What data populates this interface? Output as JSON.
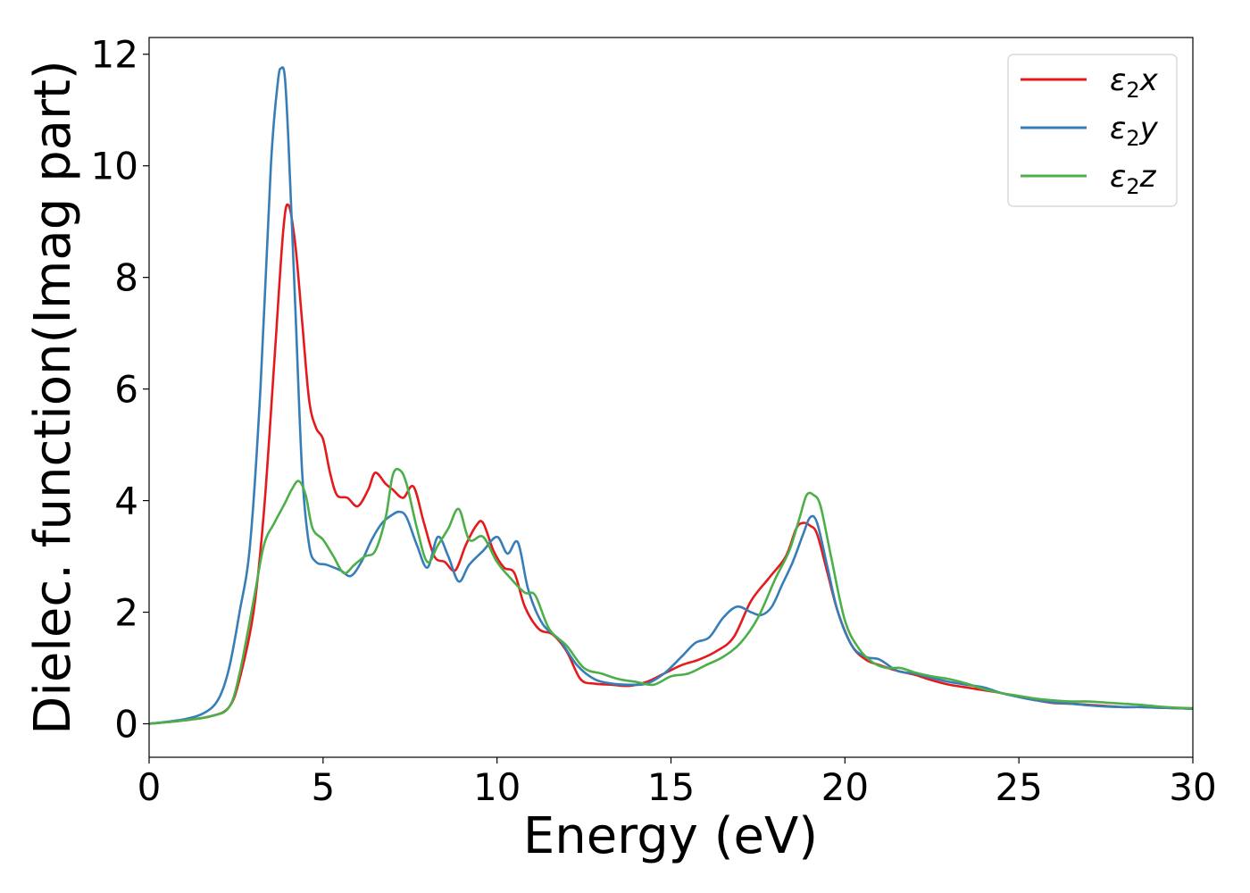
{
  "chart_data": {
    "type": "line",
    "xlabel": "Energy (eV)",
    "ylabel": "Dielec. function(Imag part)",
    "xlim": [
      0,
      30
    ],
    "ylim": [
      -0.6,
      12.3
    ],
    "xticks": [
      "0",
      "5",
      "10",
      "15",
      "20",
      "25",
      "30"
    ],
    "yticks": [
      "0",
      "2",
      "4",
      "6",
      "8",
      "10",
      "12"
    ],
    "grid": false,
    "legend_position": "top-right",
    "series": [
      {
        "name": "ε₂x",
        "legend_base": "ε",
        "legend_sub": "2",
        "legend_suffix": "x",
        "color": "#e41a1c",
        "x": [
          0,
          1,
          1.8,
          2.3,
          2.6,
          3.0,
          3.3,
          3.6,
          3.85,
          4.0,
          4.2,
          4.4,
          4.6,
          4.8,
          5.0,
          5.2,
          5.4,
          5.7,
          6.0,
          6.3,
          6.5,
          6.8,
          7.0,
          7.3,
          7.6,
          7.9,
          8.2,
          8.5,
          8.8,
          9.1,
          9.4,
          9.6,
          9.9,
          10.2,
          10.5,
          10.8,
          11.2,
          11.6,
          12.0,
          12.4,
          12.8,
          13.3,
          13.8,
          14.3,
          14.8,
          15.3,
          15.8,
          16.3,
          16.8,
          17.3,
          17.8,
          18.3,
          18.6,
          18.8,
          19.0,
          19.2,
          19.5,
          19.8,
          20.2,
          20.6,
          21.0,
          21.5,
          22.0,
          22.5,
          23.0,
          23.5,
          24.0,
          24.5,
          25.0,
          25.5,
          26.0,
          26.5,
          27.0,
          27.5,
          28.0,
          28.5,
          29.0,
          29.5,
          30.0
        ],
        "values": [
          0.0,
          0.06,
          0.14,
          0.3,
          0.8,
          2.0,
          3.8,
          6.5,
          8.8,
          9.3,
          8.6,
          7.2,
          5.8,
          5.3,
          5.1,
          4.5,
          4.1,
          4.05,
          3.9,
          4.2,
          4.5,
          4.3,
          4.2,
          4.05,
          4.25,
          3.6,
          3.0,
          2.9,
          2.75,
          3.2,
          3.55,
          3.6,
          3.1,
          2.8,
          2.7,
          2.1,
          1.7,
          1.6,
          1.3,
          0.8,
          0.72,
          0.7,
          0.68,
          0.75,
          0.9,
          1.05,
          1.15,
          1.3,
          1.55,
          2.2,
          2.6,
          3.0,
          3.5,
          3.6,
          3.55,
          3.4,
          2.7,
          2.0,
          1.4,
          1.15,
          1.05,
          0.95,
          0.88,
          0.78,
          0.7,
          0.65,
          0.6,
          0.55,
          0.48,
          0.42,
          0.37,
          0.36,
          0.34,
          0.32,
          0.3,
          0.3,
          0.29,
          0.28,
          0.27
        ]
      },
      {
        "name": "ε₂y",
        "legend_base": "ε",
        "legend_sub": "2",
        "legend_suffix": "y",
        "color": "#377eb8",
        "x": [
          0,
          1,
          1.6,
          2.0,
          2.3,
          2.6,
          2.9,
          3.2,
          3.5,
          3.7,
          3.8,
          3.9,
          4.0,
          4.2,
          4.4,
          4.6,
          4.8,
          5.1,
          5.5,
          5.8,
          6.1,
          6.4,
          6.7,
          7.0,
          7.2,
          7.4,
          7.7,
          8.0,
          8.3,
          8.6,
          8.9,
          9.2,
          9.6,
          10.0,
          10.3,
          10.6,
          10.9,
          11.3,
          11.8,
          12.3,
          12.8,
          13.3,
          13.8,
          14.3,
          14.8,
          15.3,
          15.7,
          16.1,
          16.5,
          16.9,
          17.3,
          17.6,
          17.9,
          18.2,
          18.5,
          18.8,
          19.0,
          19.2,
          19.5,
          19.8,
          20.2,
          20.6,
          21.0,
          21.5,
          22.0,
          22.5,
          23.0,
          23.5,
          24.0,
          24.5,
          25.0,
          25.5,
          26.0,
          26.5,
          27.0,
          27.5,
          28.0,
          28.5,
          29.0,
          29.5,
          30.0
        ],
        "values": [
          0.0,
          0.08,
          0.2,
          0.45,
          1.0,
          2.0,
          3.2,
          6.0,
          10.0,
          11.5,
          11.75,
          11.6,
          10.5,
          7.5,
          4.5,
          3.2,
          2.9,
          2.85,
          2.75,
          2.65,
          2.9,
          3.3,
          3.6,
          3.75,
          3.8,
          3.7,
          3.2,
          2.8,
          3.35,
          3.0,
          2.55,
          2.85,
          3.1,
          3.35,
          3.05,
          3.25,
          2.4,
          1.8,
          1.5,
          1.05,
          0.8,
          0.72,
          0.7,
          0.72,
          0.9,
          1.2,
          1.45,
          1.55,
          1.9,
          2.1,
          2.0,
          1.95,
          2.1,
          2.5,
          2.9,
          3.4,
          3.7,
          3.6,
          2.8,
          2.0,
          1.4,
          1.2,
          1.15,
          0.95,
          0.9,
          0.82,
          0.75,
          0.7,
          0.65,
          0.55,
          0.48,
          0.42,
          0.38,
          0.36,
          0.33,
          0.31,
          0.3,
          0.3,
          0.29,
          0.28,
          0.27
        ]
      },
      {
        "name": "ε₂z",
        "legend_base": "ε",
        "legend_sub": "2",
        "legend_suffix": "z",
        "color": "#4daf4a",
        "x": [
          0,
          1,
          1.8,
          2.3,
          2.6,
          3.0,
          3.3,
          3.6,
          3.9,
          4.1,
          4.3,
          4.5,
          4.7,
          5.0,
          5.3,
          5.6,
          5.9,
          6.2,
          6.5,
          6.8,
          7.0,
          7.2,
          7.4,
          7.7,
          8.0,
          8.3,
          8.6,
          8.9,
          9.2,
          9.6,
          10.0,
          10.4,
          10.8,
          11.1,
          11.5,
          12.0,
          12.5,
          13.0,
          13.5,
          14.0,
          14.5,
          15.0,
          15.5,
          16.0,
          16.5,
          17.0,
          17.5,
          18.0,
          18.4,
          18.7,
          18.9,
          19.1,
          19.3,
          19.6,
          20.0,
          20.4,
          20.8,
          21.2,
          21.6,
          22.0,
          22.5,
          23.0,
          23.5,
          24.0,
          24.5,
          25.0,
          25.5,
          26.0,
          26.5,
          27.0,
          27.5,
          28.0,
          28.5,
          29.0,
          29.5,
          30.0
        ],
        "values": [
          0.0,
          0.06,
          0.14,
          0.3,
          0.9,
          2.2,
          3.2,
          3.6,
          3.95,
          4.2,
          4.35,
          4.1,
          3.5,
          3.3,
          3.0,
          2.7,
          2.85,
          3.0,
          3.1,
          3.7,
          4.45,
          4.55,
          4.3,
          3.5,
          2.9,
          3.2,
          3.5,
          3.85,
          3.3,
          3.35,
          2.9,
          2.6,
          2.35,
          2.3,
          1.7,
          1.4,
          1.0,
          0.9,
          0.8,
          0.75,
          0.7,
          0.85,
          0.9,
          1.05,
          1.2,
          1.45,
          1.9,
          2.6,
          3.1,
          3.7,
          4.1,
          4.1,
          3.9,
          3.0,
          1.85,
          1.35,
          1.1,
          1.0,
          1.0,
          0.92,
          0.85,
          0.8,
          0.72,
          0.62,
          0.55,
          0.5,
          0.45,
          0.42,
          0.4,
          0.4,
          0.38,
          0.36,
          0.34,
          0.31,
          0.29,
          0.28
        ]
      }
    ]
  }
}
